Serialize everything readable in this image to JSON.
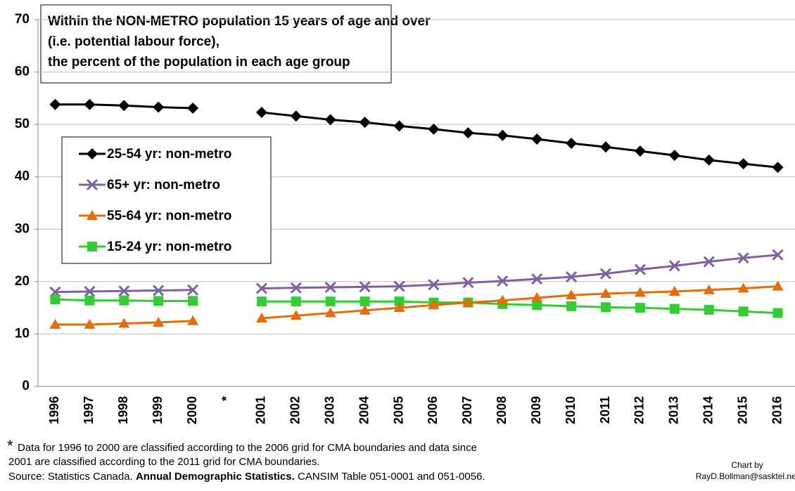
{
  "chart_data": {
    "type": "line",
    "title": [
      "Within the NON-METRO population 15 years of age and over",
      "(i.e. potential labour force),",
      "the percent of the population in each age group"
    ],
    "categories": [
      "1996",
      "1997",
      "1998",
      "1999",
      "2000",
      "*",
      "2001",
      "2002",
      "2003",
      "2004",
      "2005",
      "2006",
      "2007",
      "2008",
      "2009",
      "2010",
      "2011",
      "2012",
      "2013",
      "2014",
      "2015",
      "2016"
    ],
    "series": [
      {
        "name": "25-54 yr: non-metro",
        "color": "#000000",
        "marker": "diamond",
        "values": [
          53.8,
          53.8,
          53.6,
          53.3,
          53.1,
          null,
          52.3,
          51.6,
          50.9,
          50.4,
          49.7,
          49.1,
          48.4,
          47.9,
          47.2,
          46.4,
          45.7,
          44.9,
          44.1,
          43.2,
          42.5,
          41.8
        ]
      },
      {
        "name": "65+ yr: non-metro",
        "color": "#7f60a0",
        "marker": "x",
        "values": [
          18.0,
          18.1,
          18.2,
          18.3,
          18.4,
          null,
          18.7,
          18.8,
          18.9,
          19.0,
          19.1,
          19.4,
          19.8,
          20.1,
          20.5,
          20.9,
          21.5,
          22.3,
          23.0,
          23.8,
          24.5,
          25.1
        ]
      },
      {
        "name": "55-64 yr: non-metro",
        "color": "#e46c0a",
        "marker": "triangle",
        "values": [
          11.8,
          11.8,
          12.0,
          12.2,
          12.5,
          null,
          13.0,
          13.5,
          14.0,
          14.5,
          15.0,
          15.5,
          16.0,
          16.4,
          16.9,
          17.4,
          17.7,
          17.9,
          18.1,
          18.4,
          18.7,
          19.1
        ]
      },
      {
        "name": "15-24 yr: non-metro",
        "color": "#33cc33",
        "marker": "square",
        "values": [
          16.6,
          16.4,
          16.4,
          16.3,
          16.3,
          null,
          16.2,
          16.2,
          16.2,
          16.2,
          16.2,
          16.0,
          16.0,
          15.7,
          15.5,
          15.3,
          15.1,
          15.0,
          14.8,
          14.6,
          14.3,
          14.0
        ]
      }
    ],
    "ylim": [
      0,
      70
    ],
    "yticks": [
      0,
      10,
      20,
      30,
      40,
      50,
      60,
      70
    ],
    "grid": true,
    "footnote": [
      "*",
      "Data for 1996 to 2000 are classified according to the 2006 grid for CMA boundaries and data since",
      "2001 are classified according to the 2011 grid for CMA boundaries."
    ],
    "source": [
      "Source: Statistics Canada.",
      "Annual Demographic Statistics.",
      "CANSIM Table 051-0001 and 051-0056."
    ],
    "credit": [
      "Chart by",
      "RayD.Bollman@sasktel.net"
    ]
  }
}
